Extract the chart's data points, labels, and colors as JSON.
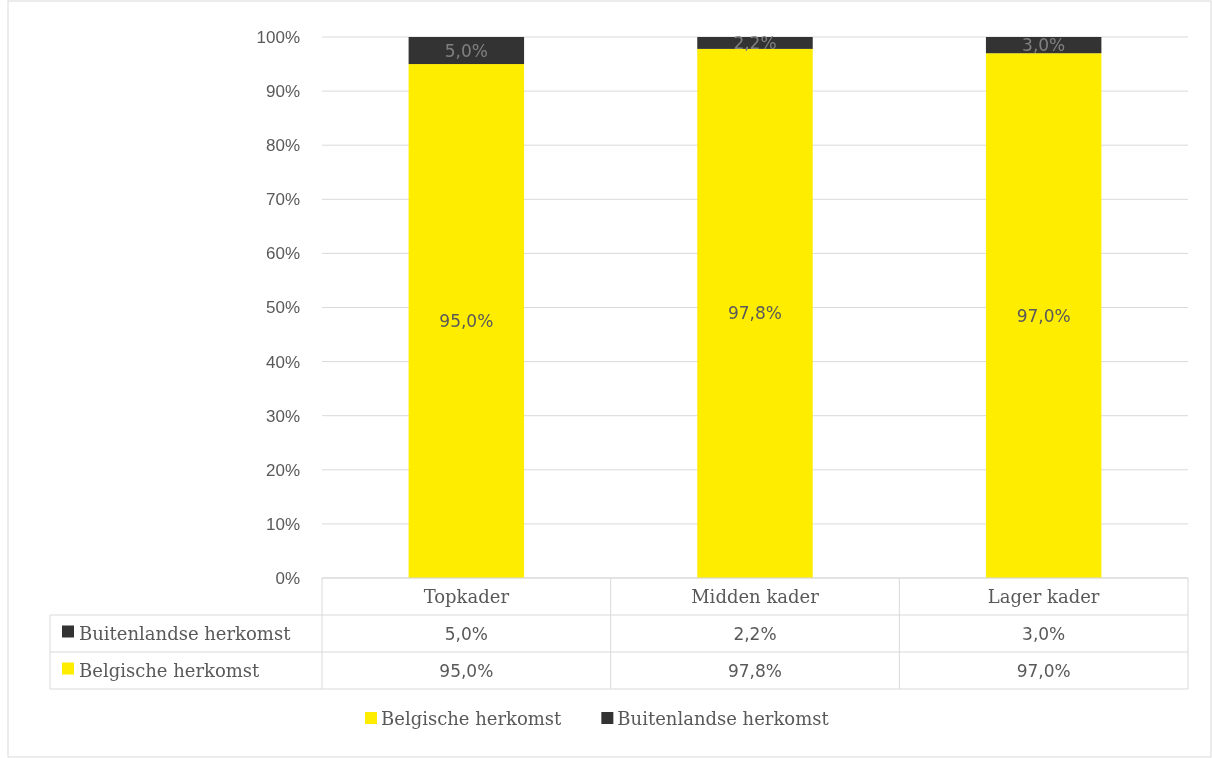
{
  "chart_data": {
    "type": "bar",
    "stacked": true,
    "categories": [
      "Topkader",
      "Midden kader",
      "Lager kader"
    ],
    "series": [
      {
        "name": "Belgische herkomst",
        "color": "#ffed00",
        "values": [
          95.0,
          97.8,
          97.0
        ],
        "value_labels": [
          "95,0%",
          "97,8%",
          "97,0%"
        ]
      },
      {
        "name": "Buitenlandse herkomst",
        "color": "#333333",
        "values": [
          5.0,
          2.2,
          3.0
        ],
        "value_labels": [
          "5,0%",
          "2,2%",
          "3,0%"
        ]
      }
    ],
    "ylim": [
      0,
      100
    ],
    "yticks": [
      {
        "value": 0,
        "label": "0%"
      },
      {
        "value": 10,
        "label": "10%"
      },
      {
        "value": 20,
        "label": "20%"
      },
      {
        "value": 30,
        "label": "30%"
      },
      {
        "value": 40,
        "label": "40%"
      },
      {
        "value": 50,
        "label": "50%"
      },
      {
        "value": 60,
        "label": "60%"
      },
      {
        "value": 70,
        "label": "70%"
      },
      {
        "value": 80,
        "label": "80%"
      },
      {
        "value": 90,
        "label": "90%"
      },
      {
        "value": 100,
        "label": "100%"
      }
    ],
    "grid": "y",
    "legend": "bottom"
  }
}
